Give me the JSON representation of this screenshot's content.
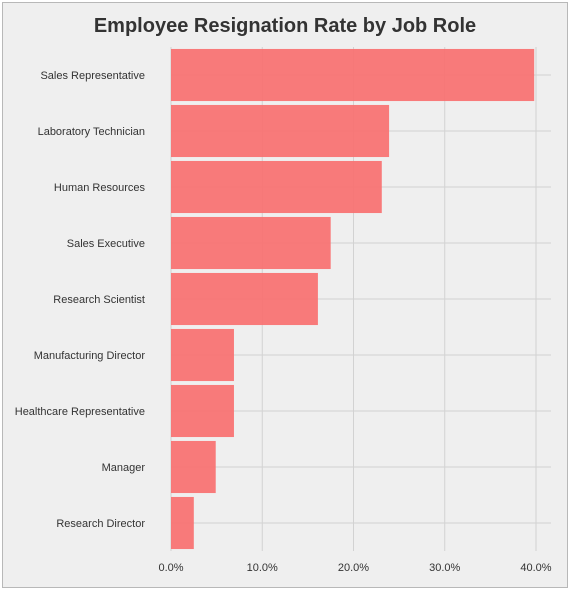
{
  "chart_data": {
    "type": "bar",
    "orientation": "horizontal",
    "title": "Employee Resignation Rate by Job Role",
    "xlabel": "",
    "ylabel": "",
    "categories": [
      "Sales Representative",
      "Laboratory Technician",
      "Human Resources",
      "Sales Executive",
      "Research Scientist",
      "Manufacturing Director",
      "Healthcare Representative",
      "Manager",
      "Research Director"
    ],
    "values": [
      39.8,
      23.9,
      23.1,
      17.5,
      16.1,
      6.9,
      6.9,
      4.9,
      2.5
    ],
    "xlim": [
      0,
      40
    ],
    "xticks": [
      0,
      10,
      20,
      30,
      40
    ],
    "xtick_labels": [
      "0.0%",
      "10.0%",
      "20.0%",
      "30.0%",
      "40.0%"
    ],
    "grid": true,
    "colors": {
      "bar": "#f87373",
      "background": "#efefef",
      "grid": "#d2d2d2",
      "text": "#333333"
    }
  }
}
